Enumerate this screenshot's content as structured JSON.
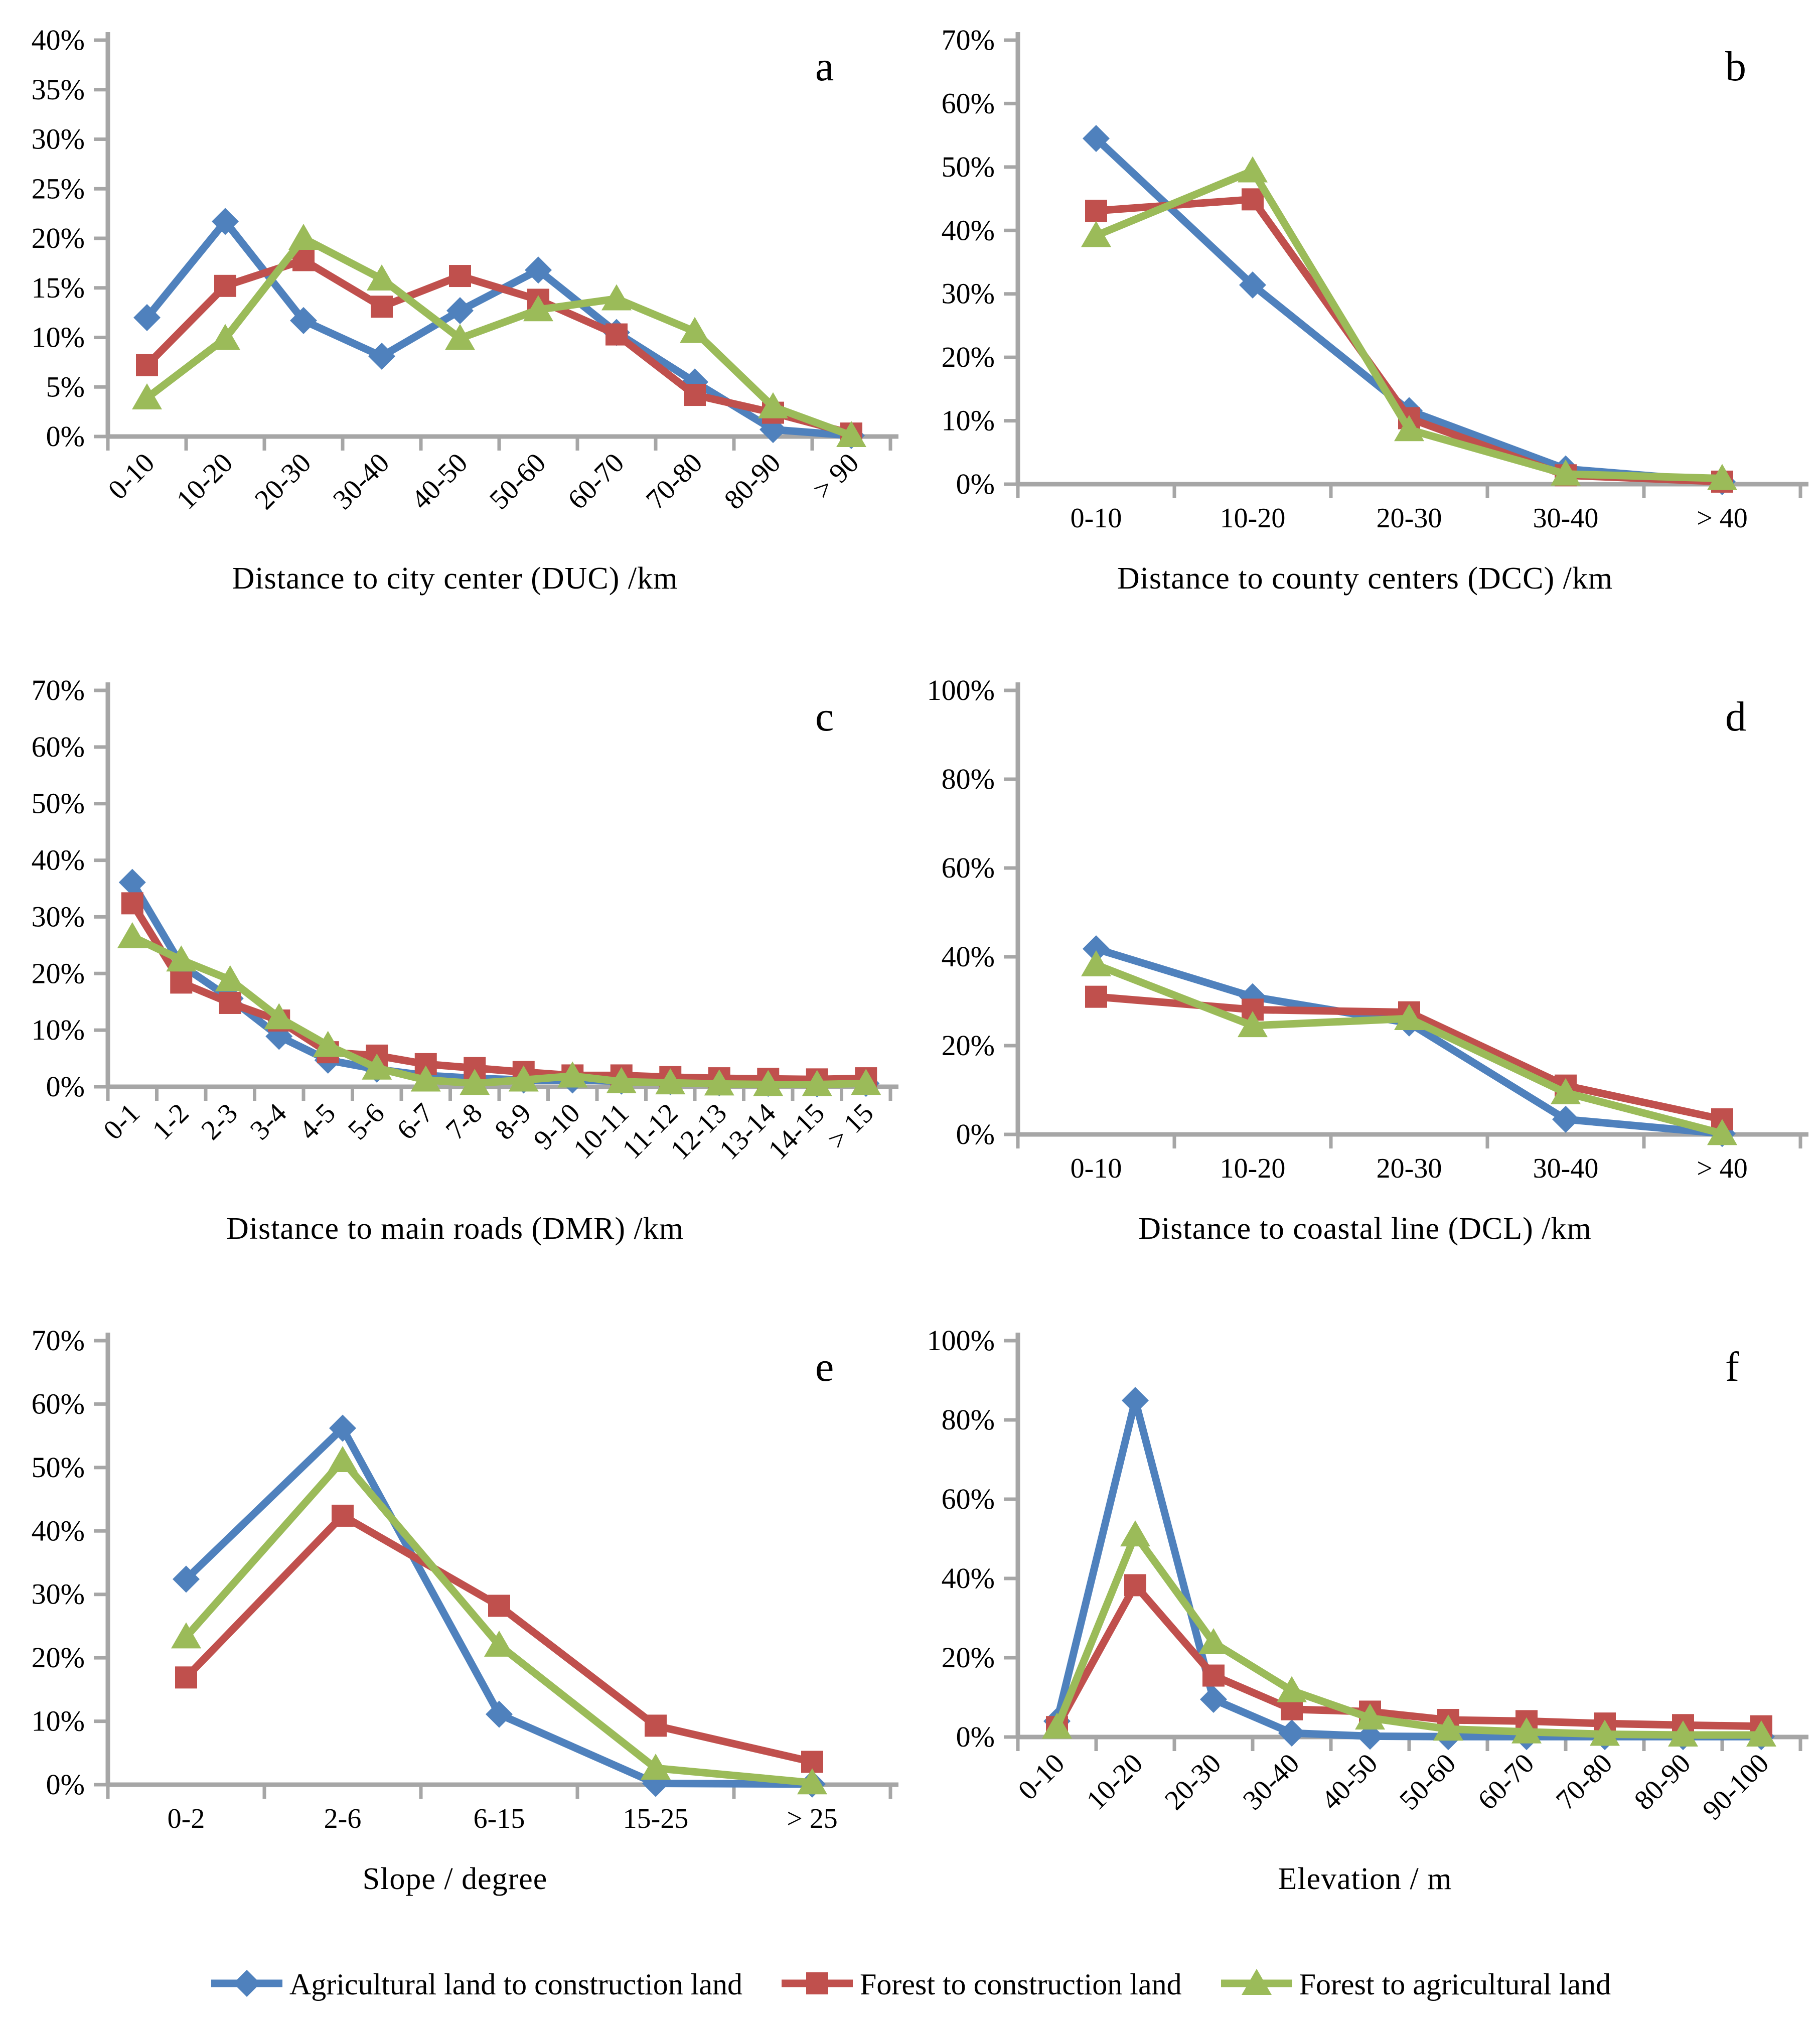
{
  "style": {
    "background": "#FFFFFF",
    "axis_color": "#A6A6A6",
    "text_color": "#000000"
  },
  "legend": [
    {
      "label": "Agricultural land to construction land",
      "color": "#4F81BD",
      "marker": "diamond"
    },
    {
      "label": "Forest to construction land",
      "color": "#C0504D",
      "marker": "square"
    },
    {
      "label": "Forest to agricultural land",
      "color": "#9BBB59",
      "marker": "triangle"
    }
  ],
  "chart_data": [
    {
      "type": "line",
      "letter": "a",
      "title": "Distance to city center (DUC) /km",
      "categories": [
        "0-10",
        "10-20",
        "20-30",
        "30-40",
        "40-50",
        "50-60",
        "60-70",
        "70-80",
        "80-90",
        "> 90"
      ],
      "ylim": [
        0,
        40
      ],
      "ytick_step": 5,
      "rotate_xlabels": true,
      "grid": false,
      "series": [
        {
          "name": "Agricultural land to construction land",
          "values": [
            12.0,
            21.7,
            11.7,
            8.1,
            12.7,
            16.8,
            10.5,
            5.5,
            0.7,
            0.1
          ]
        },
        {
          "name": "Forest to construction land",
          "values": [
            7.2,
            15.2,
            17.8,
            13.1,
            16.2,
            13.8,
            10.3,
            4.2,
            2.4,
            0.3
          ]
        },
        {
          "name": "Forest to agricultural land",
          "values": [
            3.9,
            9.9,
            20.0,
            15.9,
            9.9,
            12.8,
            13.9,
            10.6,
            3.0,
            0.1
          ]
        }
      ]
    },
    {
      "type": "line",
      "letter": "b",
      "title": "Distance to county centers (DCC) /km",
      "categories": [
        "0-10",
        "10-20",
        "20-30",
        "30-40",
        "> 40"
      ],
      "ylim": [
        0,
        70
      ],
      "ytick_step": 10,
      "rotate_xlabels": false,
      "grid": false,
      "series": [
        {
          "name": "Agricultural land to construction land",
          "values": [
            54.5,
            31.4,
            11.6,
            2.4,
            0.4
          ]
        },
        {
          "name": "Forest to construction land",
          "values": [
            43.1,
            44.9,
            10.4,
            1.4,
            0.4
          ]
        },
        {
          "name": "Forest to agricultural land",
          "values": [
            39.2,
            49.4,
            8.6,
            1.6,
            0.9
          ]
        }
      ]
    },
    {
      "type": "line",
      "letter": "c",
      "title": "Distance to main roads (DMR) /km",
      "categories": [
        "0-1",
        "1-2",
        "2-3",
        "3-4",
        "4-5",
        "5-6",
        "6-7",
        "7-8",
        "8-9",
        "9-10",
        "10-11",
        "11-12",
        "12-13",
        "13-14",
        "14-15",
        "> 15"
      ],
      "ylim": [
        0,
        70
      ],
      "ytick_step": 10,
      "rotate_xlabels": true,
      "grid": false,
      "series": [
        {
          "name": "Agricultural land to construction land",
          "values": [
            36.1,
            21.5,
            15.6,
            8.9,
            4.7,
            3.1,
            2.0,
            1.5,
            1.2,
            1.2,
            1.0,
            0.9,
            0.7,
            0.6,
            0.5,
            0.6
          ]
        },
        {
          "name": "Forest to construction land",
          "values": [
            32.4,
            18.4,
            14.8,
            11.7,
            6.1,
            5.5,
            4.0,
            3.3,
            2.6,
            2.0,
            2.0,
            1.7,
            1.5,
            1.4,
            1.3,
            1.5
          ]
        },
        {
          "name": "Forest to agricultural land",
          "values": [
            26.5,
            22.4,
            18.9,
            12.2,
            7.3,
            3.3,
            1.2,
            0.6,
            1.2,
            1.9,
            0.9,
            0.7,
            0.5,
            0.4,
            0.4,
            0.6
          ]
        }
      ]
    },
    {
      "type": "line",
      "letter": "d",
      "title": "Distance to coastal line (DCL) /km",
      "categories": [
        "0-10",
        "10-20",
        "20-30",
        "30-40",
        "> 40"
      ],
      "ylim": [
        0,
        100
      ],
      "ytick_step": 20,
      "rotate_xlabels": false,
      "grid": false,
      "series": [
        {
          "name": "Agricultural land to construction land",
          "values": [
            41.8,
            31.0,
            25.1,
            3.4,
            0.2
          ]
        },
        {
          "name": "Forest to construction land",
          "values": [
            31.0,
            28.1,
            27.5,
            11.0,
            3.4
          ]
        },
        {
          "name": "Forest to agricultural land",
          "values": [
            38.2,
            24.5,
            26.1,
            9.4,
            0.2
          ]
        }
      ]
    },
    {
      "type": "line",
      "letter": "e",
      "title": "Slope / degree",
      "categories": [
        "0-2",
        "2-6",
        "6-15",
        "15-25",
        "> 25"
      ],
      "ylim": [
        0,
        70
      ],
      "ytick_step": 10,
      "rotate_xlabels": false,
      "grid": false,
      "series": [
        {
          "name": "Agricultural land to construction land",
          "values": [
            32.4,
            56.2,
            11.1,
            0.2,
            0.1
          ]
        },
        {
          "name": "Forest to construction land",
          "values": [
            16.9,
            42.4,
            28.2,
            9.3,
            3.6
          ]
        },
        {
          "name": "Forest to agricultural land",
          "values": [
            23.3,
            51.1,
            22.0,
            2.6,
            0.3
          ]
        }
      ]
    },
    {
      "type": "line",
      "letter": "f",
      "title": "Elevation / m",
      "categories": [
        "0-10",
        "10-20",
        "20-30",
        "30-40",
        "40-50",
        "50-60",
        "60-70",
        "70-80",
        "80-90",
        "90-100"
      ],
      "ylim": [
        0,
        100
      ],
      "ytick_step": 20,
      "rotate_xlabels": true,
      "grid": false,
      "series": [
        {
          "name": "Agricultural land to construction land",
          "values": [
            4.0,
            84.9,
            9.5,
            1.0,
            0.2,
            0.1,
            0.1,
            0.1,
            0.1,
            0.1
          ]
        },
        {
          "name": "Forest to construction land",
          "values": [
            2.5,
            38.3,
            15.5,
            7.0,
            6.4,
            4.3,
            4.0,
            3.4,
            3.0,
            2.7
          ]
        },
        {
          "name": "Forest to agricultural land",
          "values": [
            2.5,
            51.0,
            23.8,
            11.7,
            4.8,
            2.0,
            1.3,
            0.7,
            0.5,
            0.5
          ]
        }
      ]
    }
  ]
}
